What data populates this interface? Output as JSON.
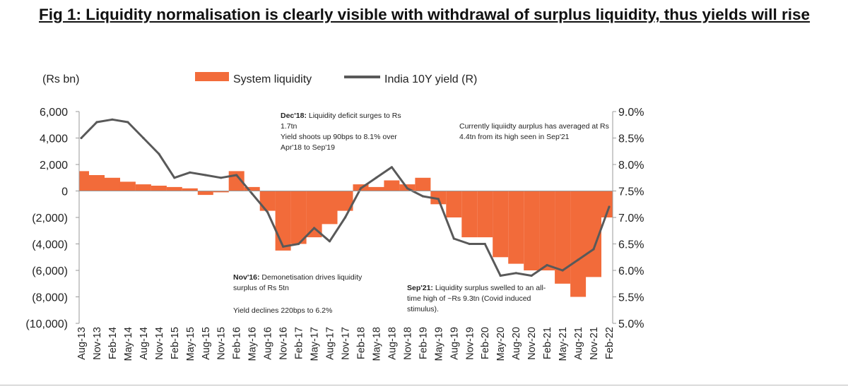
{
  "figure_title": "Fig 1: Liquidity normalisation is clearly visible with withdrawal of surplus liquidity, thus yields will rise",
  "chart_data": {
    "type": "area",
    "y_left_unit": "(Rs bn)",
    "ylim_left": [
      -10000,
      6000
    ],
    "ylim_right": [
      5.0,
      9.0
    ],
    "y_left_ticks": [
      "6,000",
      "4,000",
      "2,000",
      "0",
      "(2,000)",
      "(4,000)",
      "(6,000)",
      "(8,000)",
      "(10,000)"
    ],
    "y_right_ticks": [
      "9.0%",
      "8.5%",
      "8.0%",
      "7.5%",
      "7.0%",
      "6.5%",
      "6.0%",
      "5.5%",
      "5.0%"
    ],
    "x_ticks": [
      "Aug-13",
      "Nov-13",
      "Feb-14",
      "May-14",
      "Aug-14",
      "Nov-14",
      "Feb-15",
      "May-15",
      "Aug-15",
      "Nov-15",
      "Feb-16",
      "May-16",
      "Aug-16",
      "Nov-16",
      "Feb-17",
      "May-17",
      "Aug-17",
      "Nov-17",
      "Feb-18",
      "May-18",
      "Aug-18",
      "Nov-18",
      "Feb-19",
      "May-19",
      "Aug-19",
      "Nov-19",
      "Feb-20",
      "May-20",
      "Aug-20",
      "Nov-20",
      "Feb-21",
      "May-21",
      "Aug-21",
      "Nov-21",
      "Feb-22"
    ],
    "legend_position": "top",
    "colors": {
      "liquidity": "#F26B3A",
      "yield": "#595959"
    },
    "series": [
      {
        "name": "System liquidity",
        "axis": "left",
        "kind": "area",
        "x": [
          "Aug-13",
          "Nov-13",
          "Feb-14",
          "May-14",
          "Aug-14",
          "Nov-14",
          "Feb-15",
          "May-15",
          "Aug-15",
          "Nov-15",
          "Feb-16",
          "May-16",
          "Aug-16",
          "Nov-16",
          "Feb-17",
          "May-17",
          "Aug-17",
          "Nov-17",
          "Feb-18",
          "May-18",
          "Aug-18",
          "Nov-18",
          "Feb-19",
          "May-19",
          "Aug-19",
          "Nov-19",
          "Feb-20",
          "May-20",
          "Aug-20",
          "Nov-20",
          "Feb-21",
          "May-21",
          "Aug-21",
          "Nov-21",
          "Feb-22"
        ],
        "values": [
          1500,
          1200,
          1000,
          700,
          500,
          400,
          300,
          200,
          -300,
          -100,
          1500,
          300,
          -1500,
          -4500,
          -4000,
          -3500,
          -2500,
          -1500,
          500,
          300,
          800,
          500,
          1000,
          -1000,
          -2000,
          -3500,
          -3500,
          -5000,
          -5500,
          -6000,
          -6000,
          -7000,
          -8000,
          -6500,
          -2000
        ]
      },
      {
        "name": "India 10Y yield (R)",
        "axis": "right",
        "kind": "line",
        "x": [
          "Aug-13",
          "Nov-13",
          "Feb-14",
          "May-14",
          "Aug-14",
          "Nov-14",
          "Feb-15",
          "May-15",
          "Aug-15",
          "Nov-15",
          "Feb-16",
          "May-16",
          "Aug-16",
          "Nov-16",
          "Feb-17",
          "May-17",
          "Aug-17",
          "Nov-17",
          "Feb-18",
          "May-18",
          "Aug-18",
          "Nov-18",
          "Feb-19",
          "May-19",
          "Aug-19",
          "Nov-19",
          "Feb-20",
          "May-20",
          "Aug-20",
          "Nov-20",
          "Feb-21",
          "May-21",
          "Aug-21",
          "Nov-21",
          "Feb-22"
        ],
        "values": [
          8.5,
          8.8,
          8.85,
          8.8,
          8.5,
          8.2,
          7.75,
          7.85,
          7.8,
          7.75,
          7.8,
          7.45,
          7.1,
          6.45,
          6.5,
          6.8,
          6.55,
          7.0,
          7.55,
          7.75,
          7.95,
          7.55,
          7.4,
          7.35,
          6.6,
          6.5,
          6.5,
          5.9,
          5.95,
          5.9,
          6.1,
          6.0,
          6.2,
          6.4,
          7.2
        ]
      }
    ],
    "annotations": [
      {
        "bold": "Dec'18:",
        "lines": [
          " Liquidity deficit surges to Rs",
          "1.7tn",
          "Yield shoots up 90bps to 8.1% over",
          "Apr'18 to Sep'19"
        ]
      },
      {
        "bold": "",
        "lines": [
          "Currently liquiidty aurplus has averaged at Rs",
          "4.4tn from its high seen in Sep'21"
        ]
      },
      {
        "bold": "Nov'16:",
        "lines": [
          " Demonetisation drives liquidity",
          "surplus of Rs 5tn",
          "Yield declines 220bps to 6.2%"
        ]
      },
      {
        "bold": "Sep'21:",
        "lines": [
          " Liquidity surplus swelled to an all-",
          "time high of ~Rs 9.3tn (Covid induced",
          "stimulus)."
        ]
      }
    ]
  }
}
